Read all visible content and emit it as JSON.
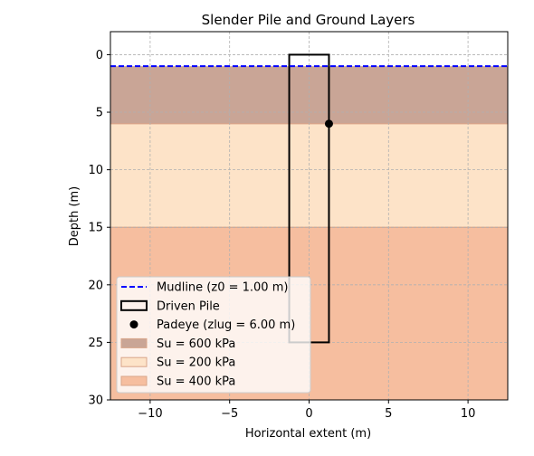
{
  "chart_data": {
    "type": "area",
    "title": "Slender Pile and Ground Layers",
    "xlabel": "Horizontal extent  (m)",
    "ylabel": "Depth (m)",
    "xlim": [
      -12.5,
      12.5
    ],
    "ylim": [
      30,
      -2
    ],
    "y_inverted": true,
    "xticks": [
      -10,
      -5,
      0,
      5,
      10
    ],
    "xtick_labels": [
      "−10",
      "−5",
      "0",
      "5",
      "10"
    ],
    "yticks": [
      0,
      5,
      10,
      15,
      20,
      25,
      30
    ],
    "ytick_labels": [
      "0",
      "5",
      "10",
      "15",
      "20",
      "25",
      "30"
    ],
    "grid": true,
    "layers": [
      {
        "name": "Su = 600 kPa",
        "top": 1.0,
        "bottom": 6.0,
        "color": "#c9a596"
      },
      {
        "name": "Su = 200 kPa",
        "top": 6.0,
        "bottom": 15.0,
        "color": "#fde3c8"
      },
      {
        "name": "Su = 400 kPa",
        "top": 15.0,
        "bottom": 30.0,
        "color": "#f6be9f"
      }
    ],
    "mudline": {
      "label": "Mudline (z0 = 1.00 m)",
      "depth": 1.0,
      "color": "#0000ff"
    },
    "pile": {
      "label": "Driven Pile",
      "x_left": -1.25,
      "x_right": 1.25,
      "top": 0.0,
      "bottom": 25.0,
      "color": "#000000"
    },
    "padeye": {
      "label": "Padeye (zlug = 6.00 m)",
      "x": 1.25,
      "depth": 6.0,
      "color": "#000000"
    },
    "legend_position": "lower-left"
  }
}
